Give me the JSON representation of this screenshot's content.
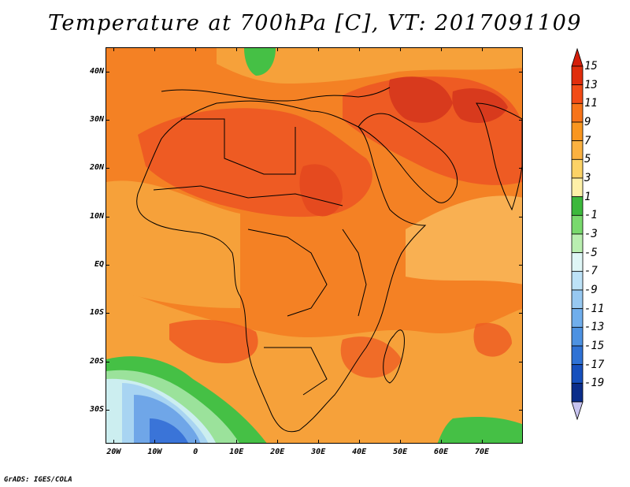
{
  "title": "Temperature at 700hPa [C], VT: 2017091109",
  "footer": "GrADS: IGES/COLA",
  "map": {
    "projection": "lat-lon",
    "lon_range": [
      -22,
      80
    ],
    "lat_range": [
      -37,
      45
    ],
    "lon_ticks": [
      {
        "lon": -20,
        "label": "20W"
      },
      {
        "lon": -10,
        "label": "10W"
      },
      {
        "lon": 0,
        "label": "0"
      },
      {
        "lon": 10,
        "label": "10E"
      },
      {
        "lon": 20,
        "label": "20E"
      },
      {
        "lon": 30,
        "label": "30E"
      },
      {
        "lon": 40,
        "label": "40E"
      },
      {
        "lon": 50,
        "label": "50E"
      },
      {
        "lon": 60,
        "label": "60E"
      },
      {
        "lon": 70,
        "label": "70E"
      }
    ],
    "lat_ticks": [
      {
        "lat": 40,
        "label": "40N"
      },
      {
        "lat": 30,
        "label": "30N"
      },
      {
        "lat": 20,
        "label": "20N"
      },
      {
        "lat": 10,
        "label": "10N"
      },
      {
        "lat": 0,
        "label": "EQ"
      },
      {
        "lat": -10,
        "label": "10S"
      },
      {
        "lat": -20,
        "label": "20S"
      },
      {
        "lat": -30,
        "label": "30S"
      }
    ]
  },
  "colorbar": {
    "levels": [
      "15",
      "13",
      "11",
      "9",
      "7",
      "5",
      "3",
      "1",
      "-1",
      "-3",
      "-5",
      "-7",
      "-9",
      "-11",
      "-13",
      "-15",
      "-17",
      "-19"
    ],
    "colors": [
      "#e02d0c",
      "#f24b16",
      "#f77419",
      "#f9961f",
      "#fbb140",
      "#fcd266",
      "#fef0a8",
      "#3cb83c",
      "#79d96d",
      "#b9eeb0",
      "#dff6f6",
      "#bde2f7",
      "#97c8f1",
      "#70aeec",
      "#4d92e2",
      "#2f72d5",
      "#1750bd",
      "#0b2d8a"
    ],
    "top_arrow_color": "#d41e0a",
    "bottom_arrow_color": "#c8c4f0"
  },
  "colors": {
    "very_hot": "#d83a1d",
    "hot": "#ee5b23",
    "warm": "#f48124",
    "mild": "#f6a13a",
    "cool": "#fbc062",
    "green": "#45c045",
    "light_green": "#9be29b",
    "cyan": "#cceef0",
    "light_blue": "#a8d4f2",
    "blue": "#6fa6e8",
    "deep_blue": "#3a74d8"
  }
}
